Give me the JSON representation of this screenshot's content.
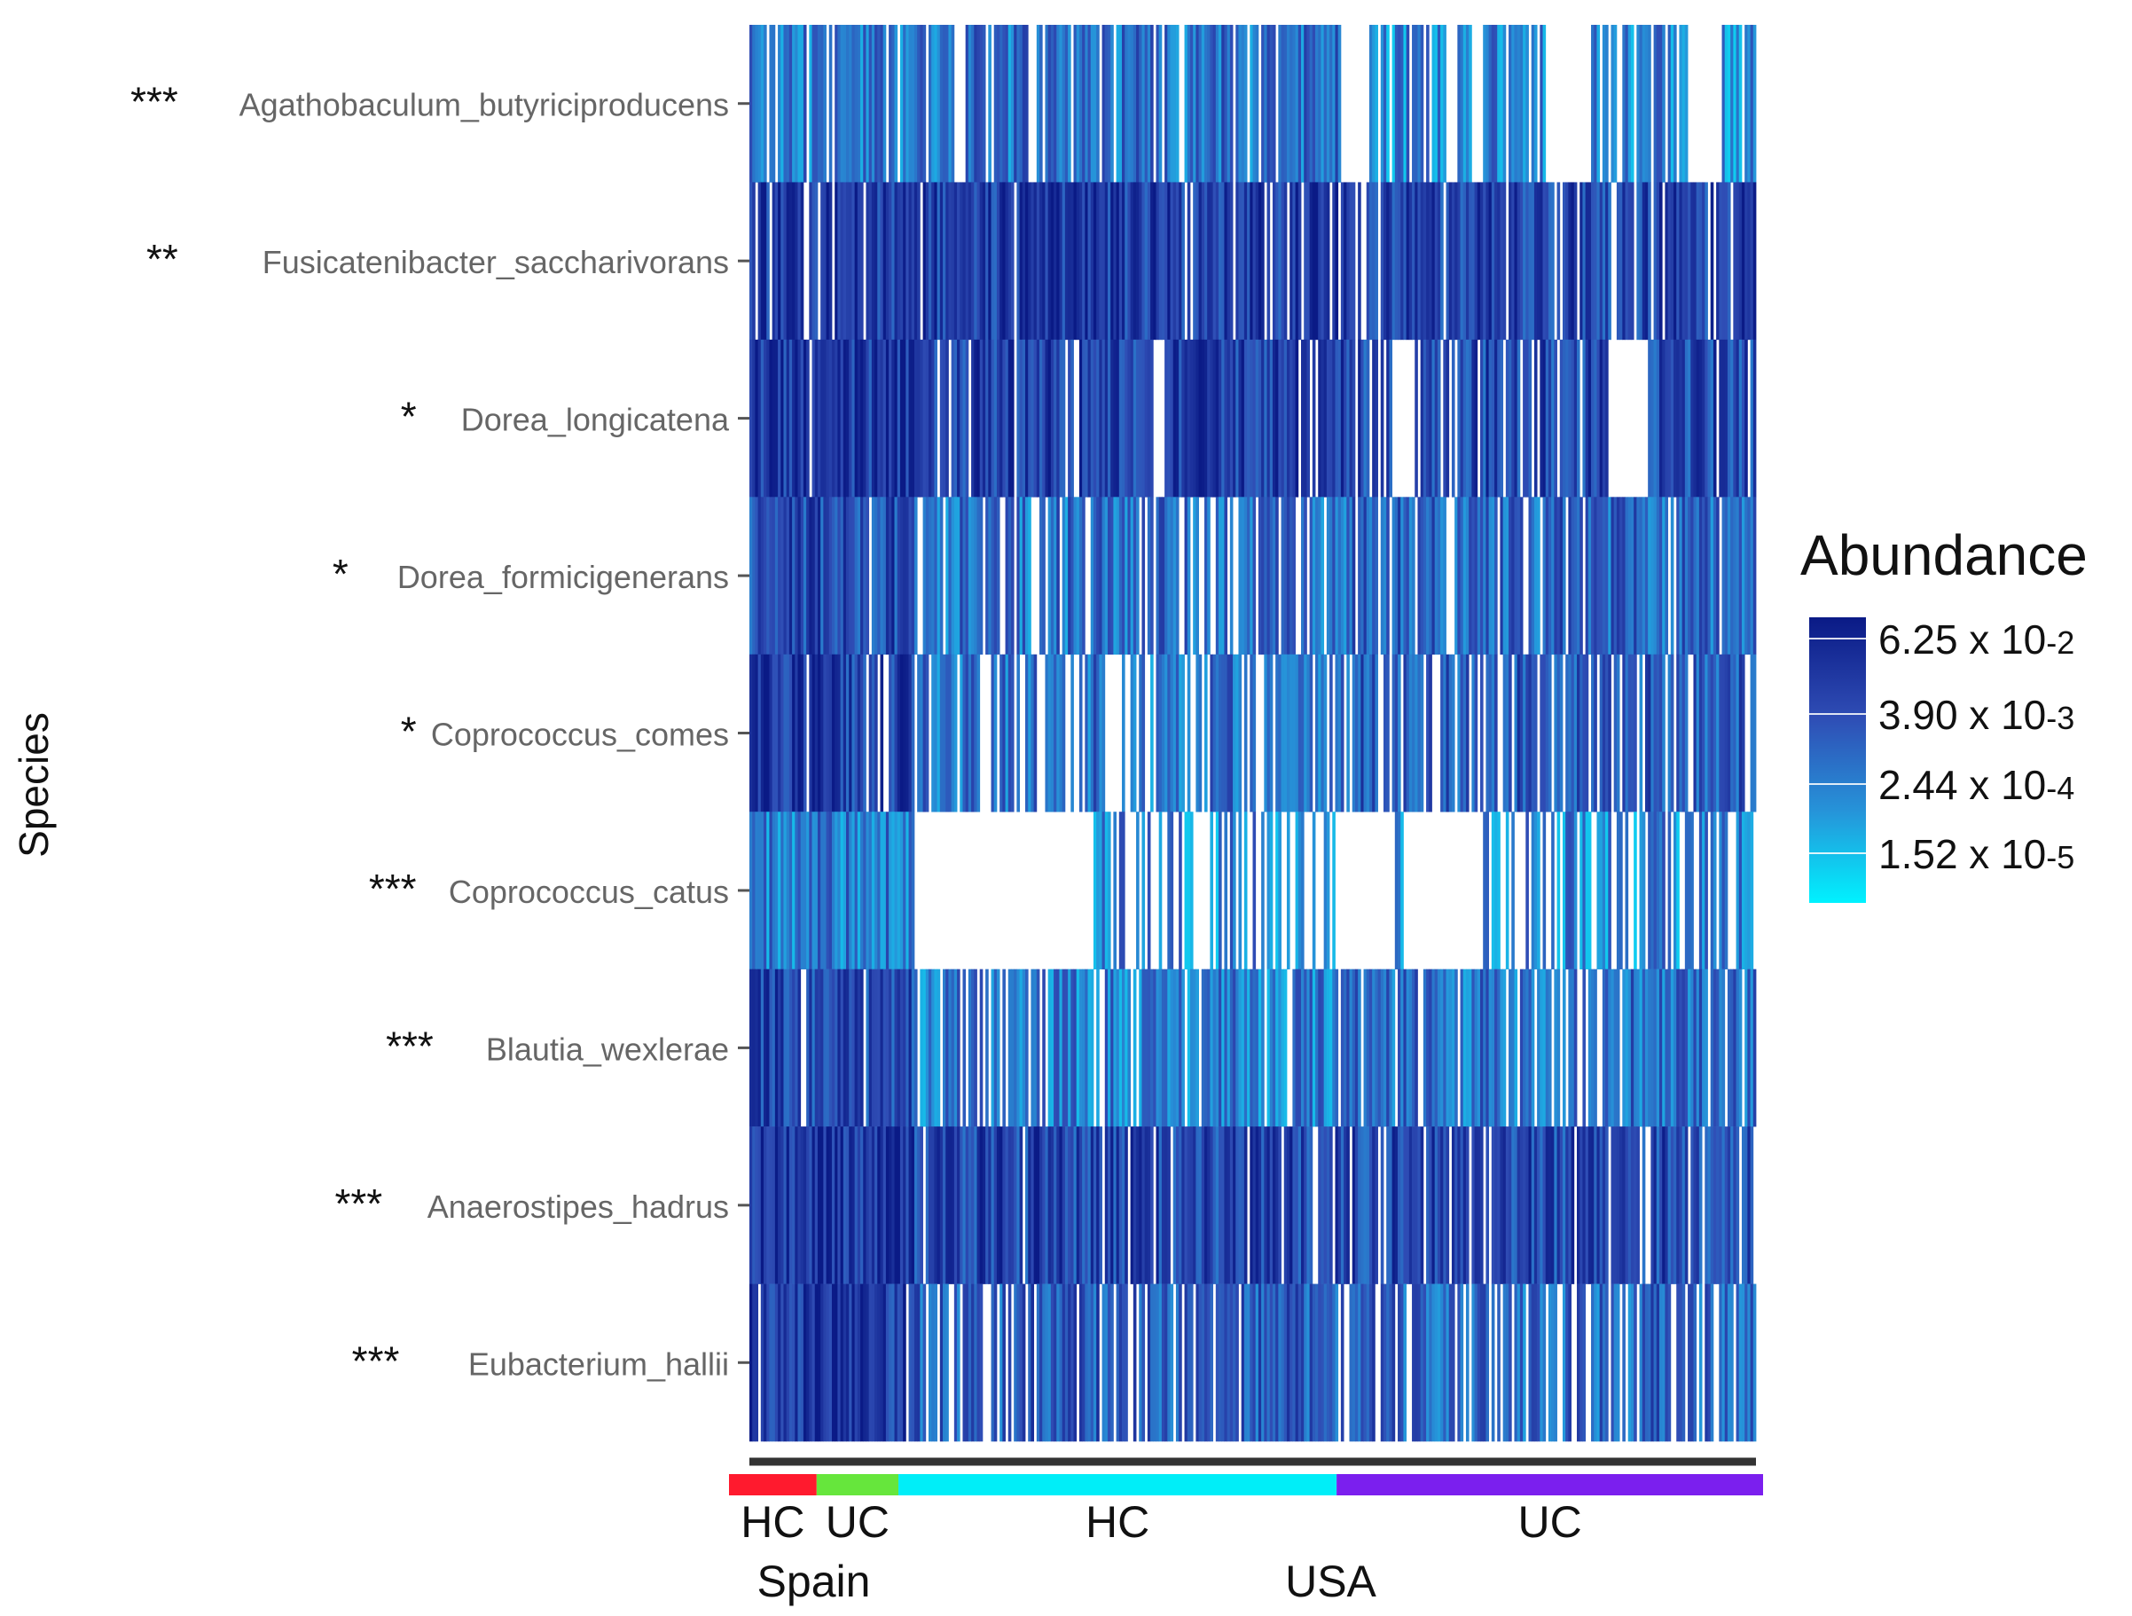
{
  "chart_data": {
    "type": "heatmap",
    "ylabel": "Species",
    "rows": [
      {
        "species": "Agathobaculum_butyriciproducens",
        "significance": "***"
      },
      {
        "species": "Fusicatenibacter_saccharivorans",
        "significance": "**"
      },
      {
        "species": "Dorea_longicatena",
        "significance": "*"
      },
      {
        "species": "Dorea_formicigenerans",
        "significance": "*"
      },
      {
        "species": "Coprococcus_comes",
        "significance": "*"
      },
      {
        "species": "Coprococcus_catus",
        "significance": "***"
      },
      {
        "species": "Blautia_wexlerae",
        "significance": "***"
      },
      {
        "species": "Anaerostipes_hadrus",
        "significance": "***"
      },
      {
        "species": "Eubacterium_hallii",
        "significance": "***"
      }
    ],
    "groups": [
      {
        "label": "HC",
        "cohort": "Spain",
        "color": "#ff1a2e",
        "samples": 30
      },
      {
        "label": "UC",
        "cohort": "Spain",
        "color": "#66e63c",
        "samples": 28
      },
      {
        "label": "HC",
        "cohort": "USA",
        "color": "#00eef8",
        "samples": 150
      },
      {
        "label": "UC",
        "cohort": "USA",
        "color": "#7b1fee",
        "samples": 146
      }
    ],
    "cohorts": [
      "Spain",
      "USA"
    ],
    "legend": {
      "title": "Abundance",
      "position": "right",
      "breaks": [
        {
          "base": "6.25 x 10",
          "exp": "-2",
          "value": 0.0625
        },
        {
          "base": "3.90 x 10",
          "exp": "-3",
          "value": 0.0039
        },
        {
          "base": "2.44 x 10",
          "exp": "-4",
          "value": 0.000244
        },
        {
          "base": "1.52 x 10",
          "exp": "-5",
          "value": 1.52e-05
        }
      ],
      "color_high": "#0a1a86",
      "color_mid1": "#2f4db5",
      "color_mid2": "#2694d9",
      "color_low": "#00f2ff",
      "color_absent": "#ffffff"
    },
    "dendrogram_color": "#333333"
  }
}
